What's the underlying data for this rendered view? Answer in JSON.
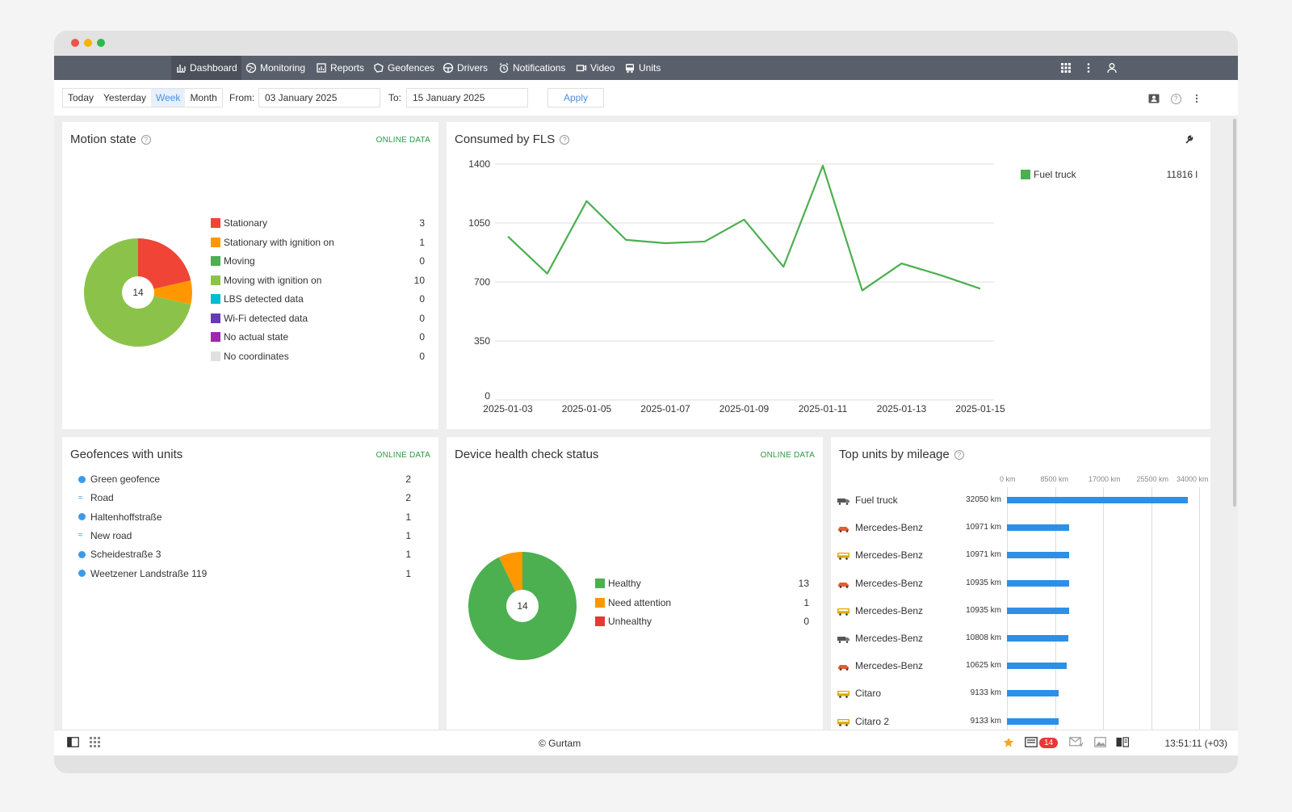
{
  "nav": {
    "items": [
      {
        "label": "Dashboard",
        "icon": "bar-chart-icon"
      },
      {
        "label": "Monitoring",
        "icon": "globe-icon"
      },
      {
        "label": "Reports",
        "icon": "report-icon"
      },
      {
        "label": "Geofences",
        "icon": "geofence-icon"
      },
      {
        "label": "Drivers",
        "icon": "steering-wheel-icon"
      },
      {
        "label": "Notifications",
        "icon": "alarm-icon"
      },
      {
        "label": "Video",
        "icon": "video-icon"
      },
      {
        "label": "Units",
        "icon": "bus-icon"
      }
    ]
  },
  "datebar": {
    "periods": [
      "Today",
      "Yesterday",
      "Week",
      "Month"
    ],
    "active_period": "Week",
    "from_label": "From:",
    "from_value": "03 January 2025",
    "to_label": "To:",
    "to_value": "15 January 2025",
    "apply_label": "Apply"
  },
  "motion": {
    "title": "Motion state",
    "online": "ONLINE DATA",
    "total": "14",
    "legend": [
      {
        "label": "Stationary",
        "value": "3",
        "color": "#ef4436"
      },
      {
        "label": "Stationary with ignition on",
        "value": "1",
        "color": "#ff9800"
      },
      {
        "label": "Moving",
        "value": "0",
        "color": "#4caf50"
      },
      {
        "label": "Moving with ignition on",
        "value": "10",
        "color": "#8bc34a"
      },
      {
        "label": "LBS detected data",
        "value": "0",
        "color": "#00bcd4"
      },
      {
        "label": "Wi-Fi detected data",
        "value": "0",
        "color": "#673ab7"
      },
      {
        "label": "No actual state",
        "value": "0",
        "color": "#9c27b0"
      },
      {
        "label": "No coordinates",
        "value": "0",
        "color": "#e0e0e0"
      }
    ]
  },
  "fls": {
    "title": "Consumed by FLS",
    "legend_label": "Fuel truck",
    "legend_value": "11816 l",
    "legend_color": "#4caf50"
  },
  "chart_data": {
    "type": "line",
    "x": [
      "2025-01-03",
      "2025-01-04",
      "2025-01-05",
      "2025-01-06",
      "2025-01-07",
      "2025-01-08",
      "2025-01-09",
      "2025-01-10",
      "2025-01-11",
      "2025-01-12",
      "2025-01-13",
      "2025-01-14",
      "2025-01-15"
    ],
    "x_ticks": [
      "2025-01-03",
      "2025-01-05",
      "2025-01-07",
      "2025-01-09",
      "2025-01-11",
      "2025-01-13",
      "2025-01-15"
    ],
    "series": [
      {
        "name": "Fuel truck",
        "values": [
          970,
          750,
          1180,
          950,
          930,
          940,
          1070,
          790,
          1390,
          650,
          810,
          740,
          660
        ],
        "color": "#4caf50"
      }
    ],
    "yticks": [
      "0",
      "350",
      "700",
      "1050",
      "1400"
    ],
    "ylim": [
      0,
      1400
    ],
    "grid": true,
    "legend": "right"
  },
  "geofences": {
    "title": "Geofences with units",
    "online": "ONLINE DATA",
    "items": [
      {
        "label": "Green geofence",
        "value": "2",
        "shape": "dot"
      },
      {
        "label": "Road",
        "value": "2",
        "shape": "wave"
      },
      {
        "label": "Haltenhoffstraße",
        "value": "1",
        "shape": "dot"
      },
      {
        "label": "New road",
        "value": "1",
        "shape": "wave"
      },
      {
        "label": "Scheidestraße 3",
        "value": "1",
        "shape": "dot"
      },
      {
        "label": "Weetzener Landstraße 119",
        "value": "1",
        "shape": "dot"
      }
    ]
  },
  "health": {
    "title": "Device health check status",
    "online": "ONLINE DATA",
    "total": "14",
    "legend": [
      {
        "label": "Healthy",
        "value": "13",
        "color": "#4caf50"
      },
      {
        "label": "Need attention",
        "value": "1",
        "color": "#ff9800"
      },
      {
        "label": "Unhealthy",
        "value": "0",
        "color": "#e53935"
      }
    ]
  },
  "mileage": {
    "title": "Top units by mileage",
    "axis": [
      "0 km",
      "8500 km",
      "17000 km",
      "25500 km",
      "34000 km"
    ],
    "max": 34000,
    "rows": [
      {
        "name": "Fuel truck",
        "km_label": "32050 km",
        "km": 32050,
        "icon": "truck-icon"
      },
      {
        "name": "Mercedes-Benz",
        "km_label": "10971 km",
        "km": 10971,
        "icon": "car-icon"
      },
      {
        "name": "Mercedes-Benz",
        "km_label": "10971 km",
        "km": 10971,
        "icon": "bus-icon"
      },
      {
        "name": "Mercedes-Benz",
        "km_label": "10935 km",
        "km": 10935,
        "icon": "car-icon"
      },
      {
        "name": "Mercedes-Benz",
        "km_label": "10935 km",
        "km": 10935,
        "icon": "bus-icon"
      },
      {
        "name": "Mercedes-Benz",
        "km_label": "10808 km",
        "km": 10808,
        "icon": "truck-icon"
      },
      {
        "name": "Mercedes-Benz",
        "km_label": "10625 km",
        "km": 10625,
        "icon": "car-icon"
      },
      {
        "name": "Citaro",
        "km_label": "9133 km",
        "km": 9133,
        "icon": "bus-icon"
      },
      {
        "name": "Citaro 2",
        "km_label": "9133 km",
        "km": 9133,
        "icon": "bus-icon"
      }
    ]
  },
  "footer": {
    "copyright": "© Gurtam",
    "notif_count": "14",
    "time": "13:51:11 (+03)"
  }
}
